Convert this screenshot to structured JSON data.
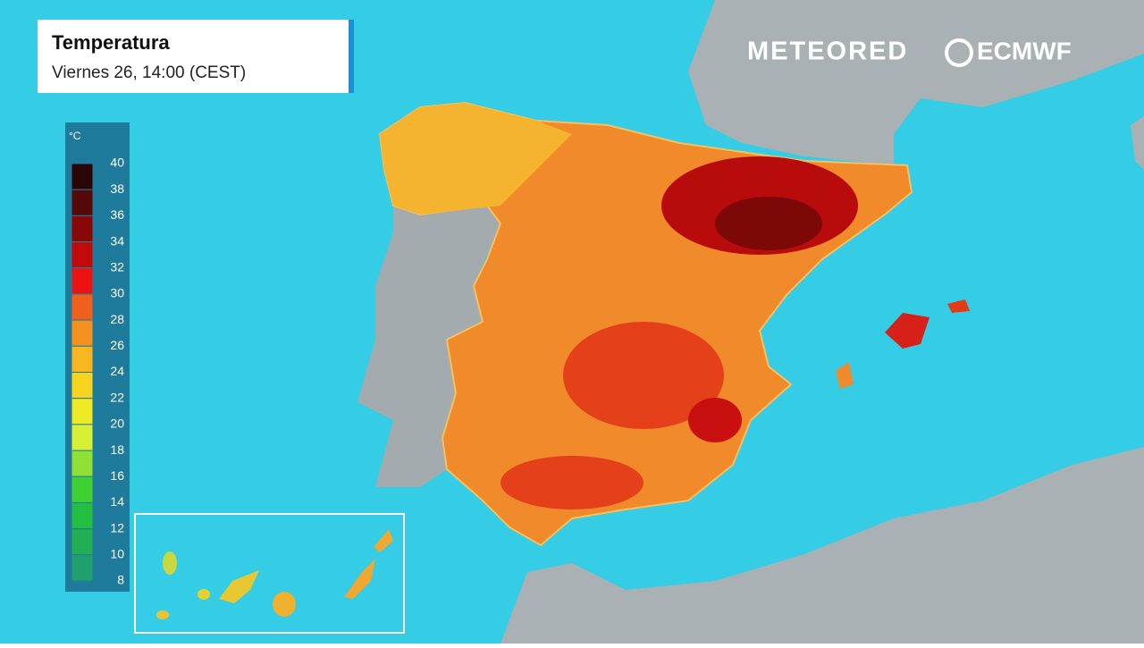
{
  "header": {
    "title": "Temperatura",
    "subtitle": "Viernes 26, 14:00 (CEST)"
  },
  "brands": [
    "METEORED",
    "ECMWF"
  ],
  "legend": {
    "unit": "°C",
    "labels": [
      40,
      38,
      36,
      34,
      32,
      30,
      28,
      26,
      24,
      22,
      20,
      18,
      16,
      14,
      12,
      10,
      8
    ],
    "colors": [
      "#2b0606",
      "#560707",
      "#880808",
      "#c20a0a",
      "#ec1212",
      "#f0601c",
      "#f5921f",
      "#f8b620",
      "#f8d41f",
      "#f0ea24",
      "#d6f034",
      "#8fe033",
      "#3fd034",
      "#22c03e",
      "#22ae52",
      "#20a06c"
    ]
  }
}
